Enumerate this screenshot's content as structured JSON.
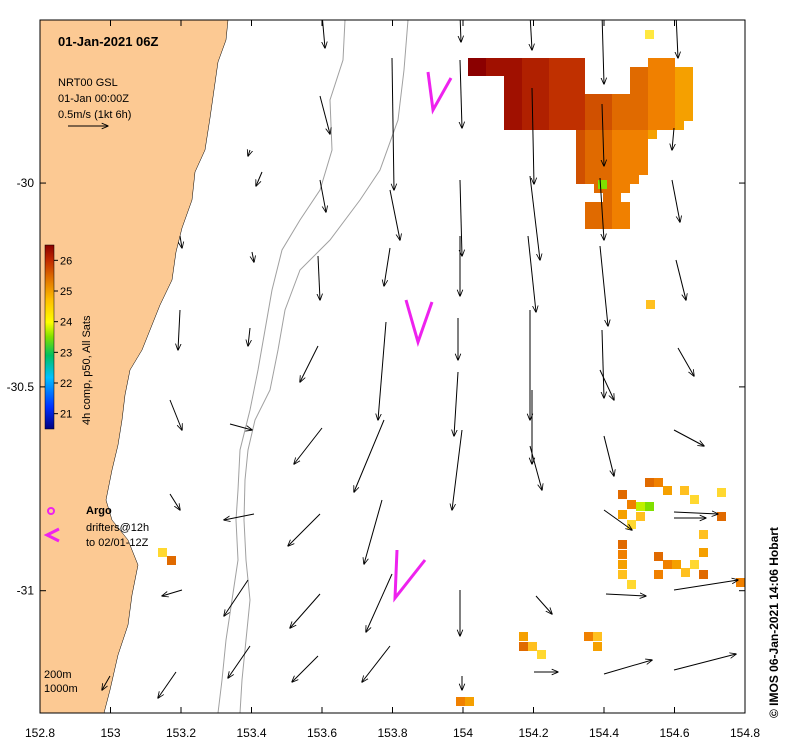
{
  "map": {
    "title": "01-Jan-2021 06Z",
    "legend_lines": [
      "NRT00 GSL",
      "01-Jan 00:00Z",
      "0.5m/s (1kt 6h)"
    ],
    "colorbar": {
      "label": "4h comp, p50, All Sats",
      "ticks": [
        "26",
        "25",
        "24",
        "23",
        "22",
        "21"
      ],
      "min": 20.5,
      "max": 26.5
    },
    "argo_label": "Argo",
    "drifters_label": [
      "drifters@12h",
      "to 02/01-12Z"
    ],
    "contour_labels": [
      "200m",
      "1000m"
    ],
    "credit": "©  IMOS 06-Jan-2021 14:06 Hobart",
    "colors": {
      "land": "#fcc993",
      "argo": "#ee22ee",
      "drifter": "#ee22ee",
      "contour": "#a0a0a0"
    },
    "x_ticks": [
      "152.8",
      "153",
      "153.2",
      "153.4",
      "153.6",
      "153.8",
      "154",
      "154.2",
      "154.4",
      "154.6",
      "154.8"
    ],
    "y_ticks": [
      "-30",
      "-30.5",
      "-31"
    ],
    "extent": {
      "lon": [
        152.8,
        154.8
      ],
      "lat": [
        -31.3,
        -29.6
      ]
    }
  }
}
